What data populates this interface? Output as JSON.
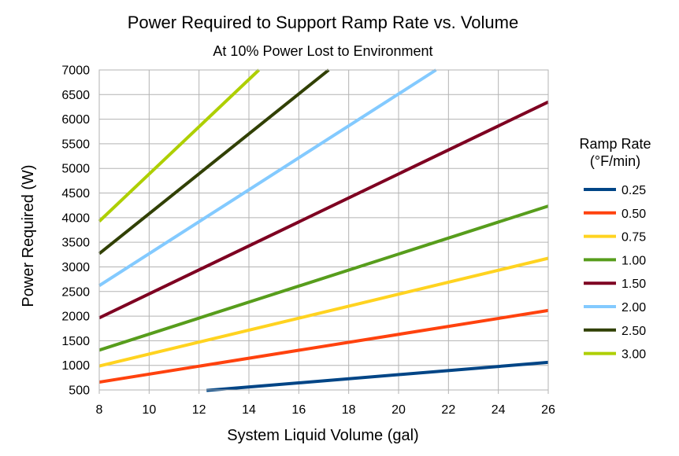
{
  "chart_data": {
    "type": "line",
    "title": "Power Required to Support Ramp Rate vs. Volume",
    "subtitle": "At 10% Power Lost to Environment",
    "xlabel": "System Liquid Volume (gal)",
    "ylabel": "Power Required (W)",
    "xlim": [
      8,
      26
    ],
    "ylim": [
      500,
      7000
    ],
    "xticks": [
      8,
      10,
      12,
      14,
      16,
      18,
      20,
      22,
      24,
      26
    ],
    "yticks": [
      500,
      1000,
      1500,
      2000,
      2500,
      3000,
      3500,
      4000,
      4500,
      5000,
      5500,
      6000,
      6500,
      7000
    ],
    "grid": true,
    "legend": {
      "title_lines": [
        "Ramp Rate",
        "(°F/min)"
      ],
      "placement": "right"
    },
    "series": [
      {
        "name": "0.25",
        "color": "#004586",
        "x": [
          12.3,
          26
        ],
        "y": [
          490,
          1060
        ]
      },
      {
        "name": "0.50",
        "color": "#ff420e",
        "x": [
          8,
          26
        ],
        "y": [
          660,
          2115
        ]
      },
      {
        "name": "0.75",
        "color": "#ffd320",
        "x": [
          8,
          26
        ],
        "y": [
          985,
          3175
        ]
      },
      {
        "name": "1.00",
        "color": "#579d1c",
        "x": [
          8,
          26
        ],
        "y": [
          1310,
          4235
        ]
      },
      {
        "name": "1.50",
        "color": "#7e0021",
        "x": [
          8,
          26
        ],
        "y": [
          1965,
          6350
        ]
      },
      {
        "name": "2.00",
        "color": "#83caff",
        "x": [
          8,
          21.5
        ],
        "y": [
          2620,
          7000
        ]
      },
      {
        "name": "2.50",
        "color": "#314004",
        "x": [
          8,
          17.2
        ],
        "y": [
          3270,
          7000
        ]
      },
      {
        "name": "3.00",
        "color": "#aecf00",
        "x": [
          8,
          14.4
        ],
        "y": [
          3925,
          7000
        ]
      }
    ]
  }
}
